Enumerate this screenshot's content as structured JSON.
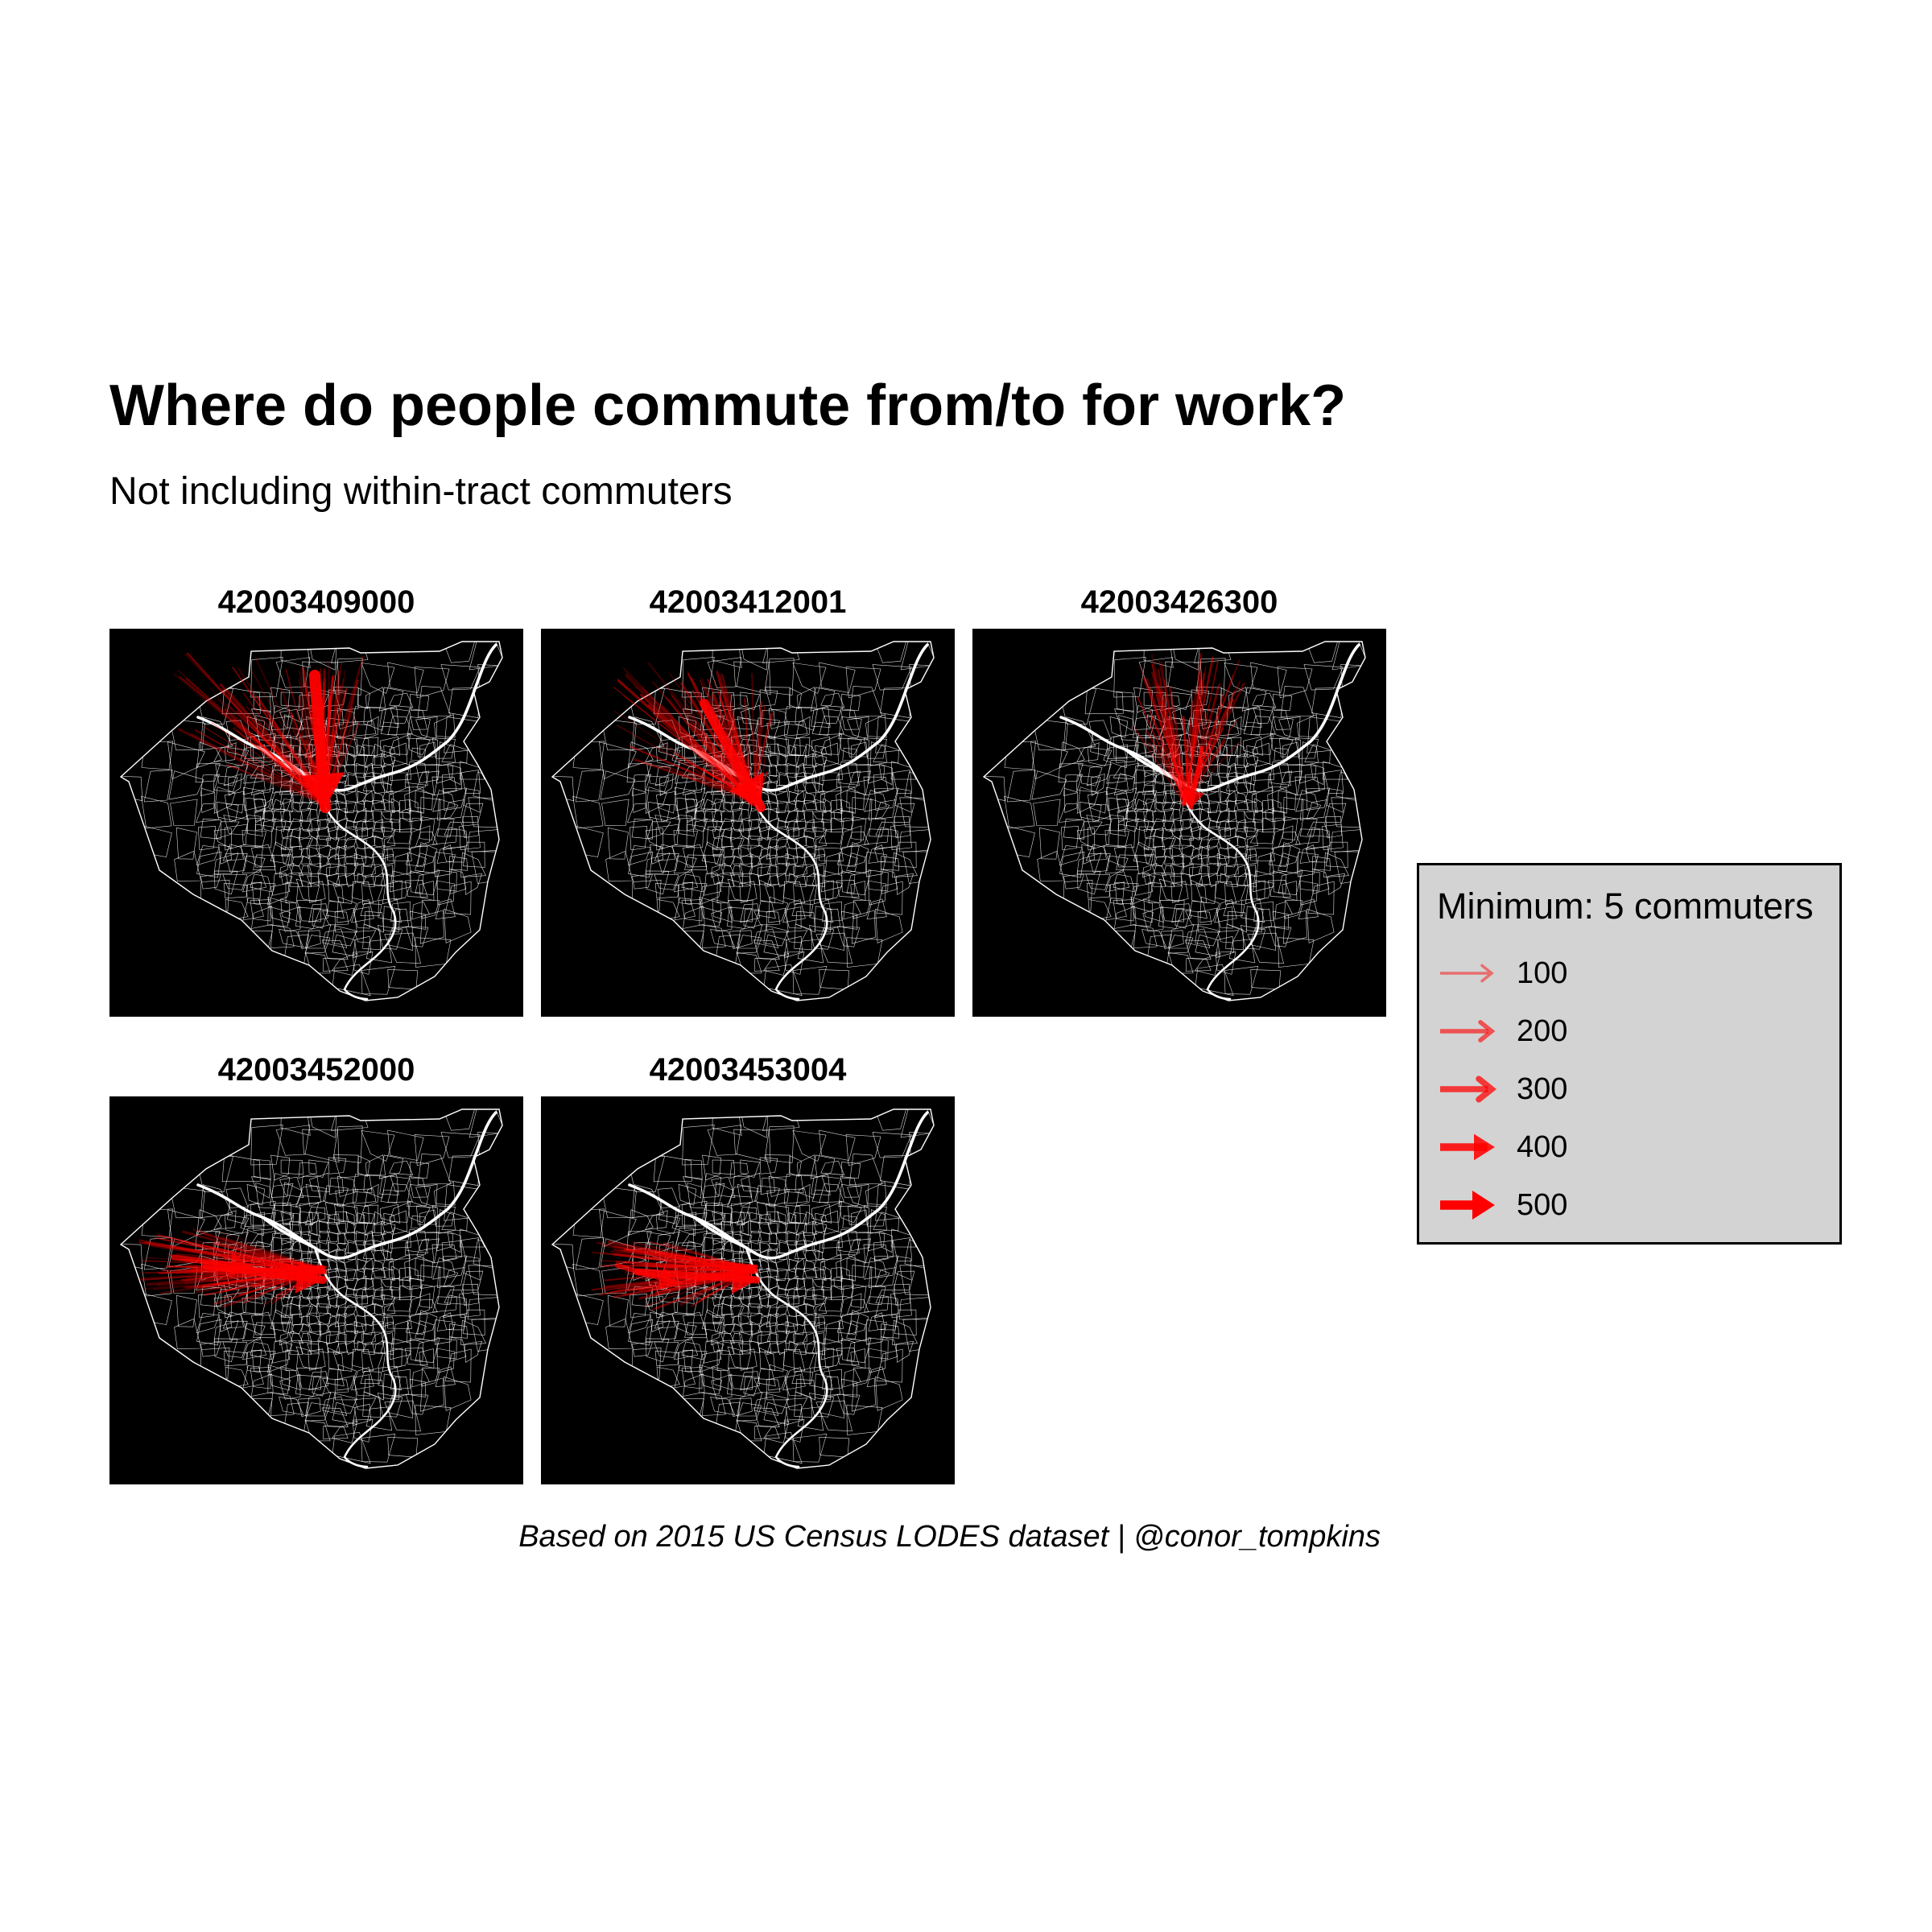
{
  "title": "Where do people commute from/to for work?",
  "subtitle": "Not including within-tract commuters",
  "caption": "Based on 2015 US Census LODES dataset | @conor_tompkins",
  "colors": {
    "background": "#000000",
    "tract_border": "#ffffff",
    "river": "#ffffff",
    "commute_arrow": "#ff0000",
    "legend_bg": "#d3d3d3"
  },
  "panels": [
    {
      "tract_id": "42003409000",
      "flow_direction": "north-to-south, into downtown"
    },
    {
      "tract_id": "42003412001",
      "flow_direction": "northwest-to-southeast, into downtown"
    },
    {
      "tract_id": "42003426300",
      "flow_direction": "north-to-south, into downtown (faint)"
    },
    {
      "tract_id": "42003452000",
      "flow_direction": "west-to-east, into downtown"
    },
    {
      "tract_id": "42003453004",
      "flow_direction": "west-to-east, into downtown"
    }
  ],
  "legend": {
    "title": "Minimum: 5 commuters",
    "entries": [
      {
        "label": "100",
        "commuters": 100
      },
      {
        "label": "200",
        "commuters": 200
      },
      {
        "label": "300",
        "commuters": 300
      },
      {
        "label": "400",
        "commuters": 400
      },
      {
        "label": "500",
        "commuters": 500
      }
    ]
  }
}
